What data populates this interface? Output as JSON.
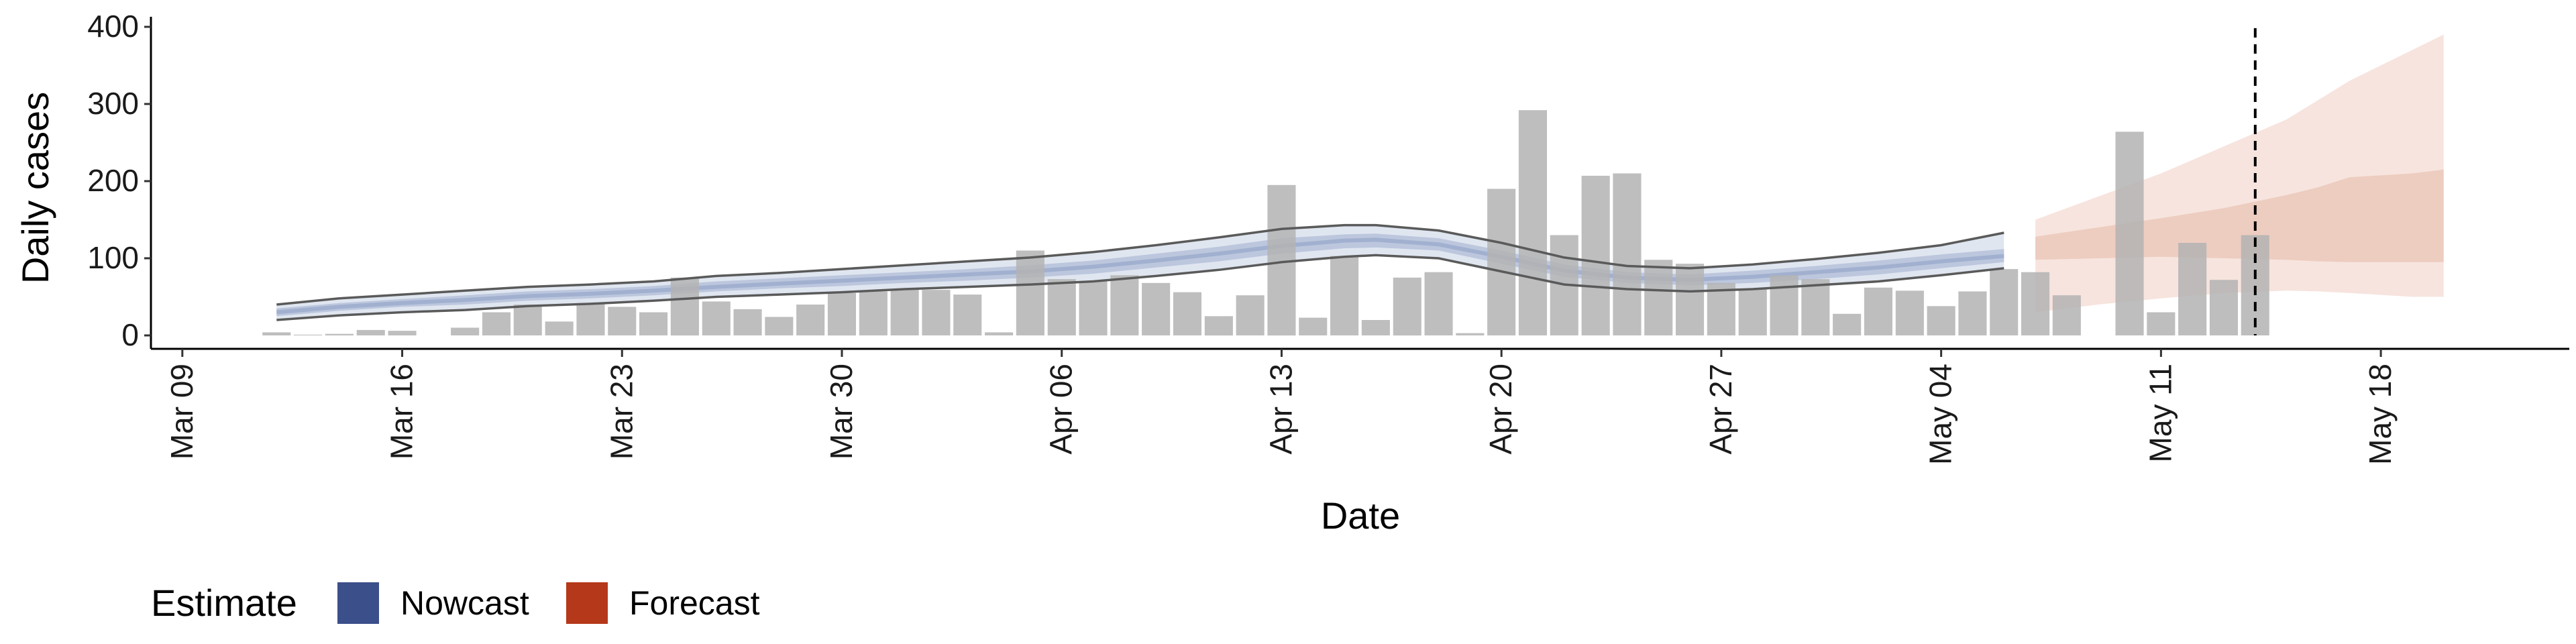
{
  "chart_data": {
    "type": "bar",
    "title": "",
    "xlabel": "Date",
    "ylabel": "Daily cases",
    "ylim": [
      0,
      400
    ],
    "yticks": [
      0,
      100,
      200,
      300,
      400
    ],
    "xlim": [
      "2020-03-08",
      "2020-05-24"
    ],
    "xticks": [
      {
        "date": "2020-03-09",
        "label": "Mar 09"
      },
      {
        "date": "2020-03-16",
        "label": "Mar 16"
      },
      {
        "date": "2020-03-23",
        "label": "Mar 23"
      },
      {
        "date": "2020-03-30",
        "label": "Mar 30"
      },
      {
        "date": "2020-04-06",
        "label": "Apr 06"
      },
      {
        "date": "2020-04-13",
        "label": "Apr 13"
      },
      {
        "date": "2020-04-20",
        "label": "Apr 20"
      },
      {
        "date": "2020-04-27",
        "label": "Apr 27"
      },
      {
        "date": "2020-05-04",
        "label": "May 04"
      },
      {
        "date": "2020-05-11",
        "label": "May 11"
      },
      {
        "date": "2020-05-18",
        "label": "May 18"
      }
    ],
    "grid": false,
    "legend_position": "bottom-left",
    "bar_color": "#b3b3b3",
    "reference_line": {
      "date": "2020-05-14",
      "style": "dashed",
      "color": "#000000"
    },
    "observed_cases": {
      "x": [
        "2020-03-12",
        "2020-03-13",
        "2020-03-14",
        "2020-03-15",
        "2020-03-16",
        "2020-03-17",
        "2020-03-18",
        "2020-03-19",
        "2020-03-20",
        "2020-03-21",
        "2020-03-22",
        "2020-03-23",
        "2020-03-24",
        "2020-03-25",
        "2020-03-26",
        "2020-03-27",
        "2020-03-28",
        "2020-03-29",
        "2020-03-30",
        "2020-03-31",
        "2020-04-01",
        "2020-04-02",
        "2020-04-03",
        "2020-04-04",
        "2020-04-05",
        "2020-04-06",
        "2020-04-07",
        "2020-04-08",
        "2020-04-09",
        "2020-04-10",
        "2020-04-11",
        "2020-04-12",
        "2020-04-13",
        "2020-04-14",
        "2020-04-15",
        "2020-04-16",
        "2020-04-17",
        "2020-04-18",
        "2020-04-19",
        "2020-04-20",
        "2020-04-21",
        "2020-04-22",
        "2020-04-23",
        "2020-04-24",
        "2020-04-25",
        "2020-04-26",
        "2020-04-27",
        "2020-04-28",
        "2020-04-29",
        "2020-04-30",
        "2020-05-01",
        "2020-05-02",
        "2020-05-03",
        "2020-05-04",
        "2020-05-05",
        "2020-05-06",
        "2020-05-07",
        "2020-05-08",
        "2020-05-09",
        "2020-05-10",
        "2020-05-11",
        "2020-05-12",
        "2020-05-13",
        "2020-05-14"
      ],
      "values": [
        4,
        1,
        2,
        7,
        6,
        0,
        10,
        30,
        40,
        18,
        42,
        37,
        30,
        75,
        44,
        34,
        24,
        40,
        55,
        57,
        60,
        59,
        53,
        4,
        110,
        73,
        70,
        78,
        68,
        56,
        25,
        52,
        195,
        23,
        103,
        20,
        75,
        82,
        3,
        190,
        292,
        130,
        207,
        210,
        98,
        93,
        68,
        60,
        78,
        73,
        28,
        62,
        58,
        38,
        57,
        86,
        82,
        52,
        0,
        264,
        30,
        120,
        72,
        130
      ]
    },
    "series": [
      {
        "name": "Nowcast",
        "color": "#3b4f8a",
        "x": [
          "2020-03-12",
          "2020-03-14",
          "2020-03-16",
          "2020-03-18",
          "2020-03-20",
          "2020-03-22",
          "2020-03-24",
          "2020-03-26",
          "2020-03-28",
          "2020-03-30",
          "2020-04-01",
          "2020-04-03",
          "2020-04-05",
          "2020-04-07",
          "2020-04-09",
          "2020-04-11",
          "2020-04-13",
          "2020-04-15",
          "2020-04-16",
          "2020-04-18",
          "2020-04-20",
          "2020-04-22",
          "2020-04-24",
          "2020-04-26",
          "2020-04-28",
          "2020-04-30",
          "2020-05-02",
          "2020-05-04",
          "2020-05-06"
        ],
        "lower90": [
          20,
          26,
          30,
          33,
          38,
          41,
          45,
          50,
          53,
          56,
          60,
          63,
          66,
          70,
          77,
          85,
          95,
          102,
          104,
          100,
          83,
          66,
          60,
          57,
          60,
          65,
          70,
          78,
          87
        ],
        "lower50": [
          25,
          32,
          37,
          40,
          45,
          48,
          52,
          57,
          61,
          64,
          68,
          71,
          75,
          80,
          88,
          96,
          106,
          113,
          114,
          110,
          93,
          76,
          68,
          65,
          68,
          73,
          79,
          87,
          95
        ],
        "median": [
          30,
          37,
          42,
          46,
          51,
          54,
          58,
          63,
          67,
          71,
          75,
          79,
          83,
          89,
          97,
          106,
          116,
          123,
          124,
          118,
          102,
          84,
          75,
          72,
          76,
          82,
          88,
          96,
          103
        ],
        "upper50": [
          35,
          42,
          47,
          52,
          57,
          60,
          64,
          70,
          74,
          78,
          82,
          86,
          91,
          97,
          106,
          115,
          126,
          131,
          132,
          126,
          110,
          92,
          82,
          79,
          84,
          90,
          97,
          105,
          112
        ],
        "upper90": [
          40,
          48,
          53,
          58,
          63,
          66,
          70,
          77,
          81,
          86,
          91,
          96,
          101,
          108,
          117,
          127,
          138,
          143,
          143,
          136,
          120,
          101,
          90,
          87,
          92,
          99,
          107,
          117,
          133
        ]
      },
      {
        "name": "Forecast",
        "color": "#b5381a",
        "x": [
          "2020-05-07",
          "2020-05-09",
          "2020-05-11",
          "2020-05-13",
          "2020-05-15",
          "2020-05-16",
          "2020-05-17",
          "2020-05-19",
          "2020-05-20"
        ],
        "lower90": [
          30,
          40,
          48,
          55,
          58,
          57,
          55,
          50,
          50
        ],
        "lower50": [
          98,
          100,
          102,
          100,
          98,
          96,
          95,
          95,
          95
        ],
        "upper50": [
          128,
          140,
          152,
          165,
          182,
          192,
          205,
          210,
          215
        ],
        "upper90": [
          150,
          180,
          210,
          245,
          280,
          305,
          330,
          370,
          390
        ]
      }
    ],
    "legend": {
      "title": "Estimate",
      "entries": [
        {
          "label": "Nowcast",
          "color": "#3b4f8a"
        },
        {
          "label": "Forecast",
          "color": "#b5381a"
        }
      ]
    }
  }
}
